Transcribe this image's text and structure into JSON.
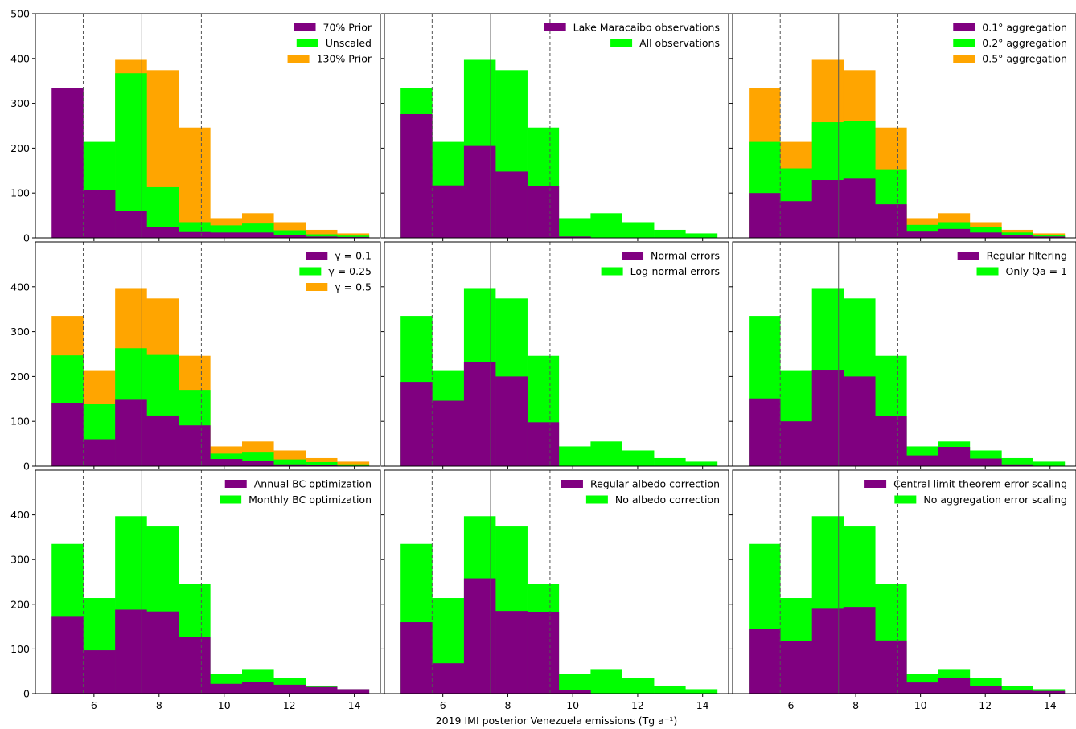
{
  "figure": {
    "xlabel": "2019 IMI posterior Venezuela emissions (Tg a⁻¹)"
  },
  "axes": {
    "x_range": [
      4.2,
      14.8
    ],
    "x_ticks": [
      "6",
      "8",
      "10",
      "12",
      "14"
    ],
    "x_tick_values": [
      6,
      8,
      10,
      12,
      14
    ],
    "y_range": [
      0,
      500
    ],
    "y_ticks_row1": [
      "0",
      "100",
      "200",
      "300",
      "400",
      "500"
    ],
    "y_tick_values_row1": [
      0,
      100,
      200,
      300,
      400,
      500
    ],
    "y_ticks": [
      "0",
      "100",
      "200",
      "300",
      "400"
    ],
    "y_tick_values": [
      0,
      100,
      200,
      300,
      400
    ],
    "reference_lines": [
      {
        "x": 5.67,
        "style": "dashed"
      },
      {
        "x": 7.47,
        "style": "solid"
      },
      {
        "x": 9.3,
        "style": "dashed"
      }
    ]
  },
  "colors": {
    "purple": "#800080",
    "green": "#00ff00",
    "orange": "#ffa500",
    "refline": "#555555"
  },
  "chart_data": [
    {
      "type": "bar",
      "bin_edges": [
        4.7,
        5.67,
        6.65,
        7.62,
        8.6,
        9.57,
        10.55,
        11.52,
        12.5,
        13.47,
        14.45
      ],
      "series": [
        {
          "name": "70% Prior",
          "color": "#800080",
          "values": [
            335,
            107,
            60,
            25,
            13,
            12,
            12,
            7,
            3,
            2
          ]
        },
        {
          "name": "Unscaled",
          "color": "#00ff00",
          "values": [
            0,
            214,
            367,
            113,
            35,
            28,
            32,
            17,
            8,
            5
          ]
        },
        {
          "name": "130% Prior",
          "color": "#ffa500",
          "values": [
            0,
            0,
            397,
            374,
            246,
            44,
            55,
            35,
            18,
            10
          ]
        }
      ]
    },
    {
      "type": "bar",
      "bin_edges": [
        4.7,
        5.67,
        6.65,
        7.62,
        8.6,
        9.57,
        10.55,
        11.52,
        12.5,
        13.47,
        14.45
      ],
      "series": [
        {
          "name": "Lake Maracaibo observations",
          "color": "#800080",
          "values": [
            276,
            117,
            205,
            148,
            115,
            3,
            0,
            0,
            0,
            0
          ]
        },
        {
          "name": "All observations",
          "color": "#00ff00",
          "values": [
            335,
            214,
            397,
            374,
            246,
            44,
            55,
            35,
            18,
            10
          ]
        }
      ]
    },
    {
      "type": "bar",
      "bin_edges": [
        4.7,
        5.67,
        6.65,
        7.62,
        8.6,
        9.57,
        10.55,
        11.52,
        12.5,
        13.47,
        14.45
      ],
      "series": [
        {
          "name": "0.1° aggregation",
          "color": "#800080",
          "values": [
            100,
            82,
            129,
            132,
            75,
            14,
            20,
            12,
            7,
            3
          ]
        },
        {
          "name": "0.2° aggregation",
          "color": "#00ff00",
          "values": [
            214,
            155,
            258,
            260,
            153,
            29,
            35,
            24,
            12,
            6
          ]
        },
        {
          "name": "0.5° aggregation",
          "color": "#ffa500",
          "values": [
            335,
            214,
            397,
            374,
            246,
            44,
            55,
            35,
            18,
            10
          ]
        }
      ]
    },
    {
      "type": "bar",
      "bin_edges": [
        4.7,
        5.67,
        6.65,
        7.62,
        8.6,
        9.57,
        10.55,
        11.52,
        12.5,
        13.47,
        14.45
      ],
      "series": [
        {
          "name": "γ = 0.1",
          "color": "#800080",
          "values": [
            140,
            60,
            148,
            113,
            91,
            16,
            11,
            4,
            2,
            1
          ]
        },
        {
          "name": "γ = 0.25",
          "color": "#00ff00",
          "values": [
            247,
            138,
            263,
            248,
            170,
            28,
            32,
            15,
            9,
            4
          ]
        },
        {
          "name": "γ = 0.5",
          "color": "#ffa500",
          "values": [
            335,
            214,
            397,
            374,
            246,
            44,
            55,
            35,
            18,
            10
          ]
        }
      ]
    },
    {
      "type": "bar",
      "bin_edges": [
        4.7,
        5.67,
        6.65,
        7.62,
        8.6,
        9.57,
        10.55,
        11.52,
        12.5,
        13.47,
        14.45
      ],
      "series": [
        {
          "name": "Normal errors",
          "color": "#800080",
          "values": [
            188,
            146,
            232,
            200,
            98,
            0,
            0,
            0,
            0,
            0
          ]
        },
        {
          "name": "Log-normal errors",
          "color": "#00ff00",
          "values": [
            335,
            214,
            397,
            374,
            246,
            44,
            55,
            35,
            18,
            10
          ]
        }
      ]
    },
    {
      "type": "bar",
      "bin_edges": [
        4.7,
        5.67,
        6.65,
        7.62,
        8.6,
        9.57,
        10.55,
        11.52,
        12.5,
        13.47,
        14.45
      ],
      "series": [
        {
          "name": "Regular filtering",
          "color": "#800080",
          "values": [
            151,
            100,
            215,
            200,
            112,
            24,
            43,
            17,
            4,
            0
          ]
        },
        {
          "name": "Only Qa = 1",
          "color": "#00ff00",
          "values": [
            335,
            214,
            397,
            374,
            246,
            44,
            55,
            35,
            18,
            10
          ]
        }
      ]
    },
    {
      "type": "bar",
      "bin_edges": [
        4.7,
        5.67,
        6.65,
        7.62,
        8.6,
        9.57,
        10.55,
        11.52,
        12.5,
        13.47,
        14.45
      ],
      "series": [
        {
          "name": "Annual BC optimization",
          "color": "#800080",
          "values": [
            172,
            97,
            188,
            184,
            127,
            22,
            26,
            20,
            15,
            10
          ]
        },
        {
          "name": "Monthly BC optimization",
          "color": "#00ff00",
          "values": [
            335,
            214,
            397,
            374,
            246,
            44,
            55,
            35,
            18,
            10
          ]
        }
      ]
    },
    {
      "type": "bar",
      "bin_edges": [
        4.7,
        5.67,
        6.65,
        7.62,
        8.6,
        9.57,
        10.55,
        11.52,
        12.5,
        13.47,
        14.45
      ],
      "series": [
        {
          "name": "Regular albedo correction",
          "color": "#800080",
          "values": [
            160,
            68,
            258,
            185,
            183,
            9,
            0,
            0,
            0,
            0
          ]
        },
        {
          "name": "No albedo correction",
          "color": "#00ff00",
          "values": [
            335,
            214,
            397,
            374,
            246,
            44,
            55,
            35,
            18,
            10
          ]
        }
      ]
    },
    {
      "type": "bar",
      "bin_edges": [
        4.7,
        5.67,
        6.65,
        7.62,
        8.6,
        9.57,
        10.55,
        11.52,
        12.5,
        13.47,
        14.45
      ],
      "series": [
        {
          "name": "Central limit theorem error scaling",
          "color": "#800080",
          "values": [
            145,
            118,
            190,
            194,
            119,
            25,
            36,
            18,
            7,
            6
          ]
        },
        {
          "name": "No aggregation error scaling",
          "color": "#00ff00",
          "values": [
            335,
            214,
            397,
            374,
            246,
            44,
            55,
            35,
            18,
            10
          ]
        }
      ]
    }
  ]
}
